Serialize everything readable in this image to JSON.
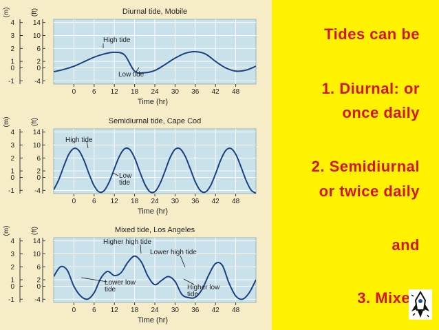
{
  "slide": {
    "lines": [
      "Tides can be",
      "1. Diurnal: or",
      "once daily",
      "2. Semidiurnal",
      "or twice daily",
      "and",
      "3. Mixed"
    ],
    "logo_icon": "rocket-logo-icon"
  },
  "colors": {
    "panel_bg": "#f6ecc8",
    "plot_bg": "#c9e1ea",
    "curve": "#1a3f80",
    "text_panel": "#fff200",
    "text": "#d4161b"
  },
  "chart_data": [
    {
      "type": "line",
      "title": "Diurnal tide, Mobile",
      "xlabel": "Time (hr)",
      "y_unit_left": "(m)",
      "y_unit_right": "(ft)",
      "x_ticks": [
        0,
        6,
        12,
        18,
        24,
        30,
        36,
        42,
        48
      ],
      "xlim": [
        -6,
        54
      ],
      "y_ticks_m": [
        4,
        3,
        2,
        1,
        0,
        -1
      ],
      "y_ticks_ft": [
        14,
        10,
        6,
        2,
        0,
        -4
      ],
      "ylim_ft": [
        -5,
        15
      ],
      "series": [
        {
          "x": [
            -6,
            -3,
            0,
            3,
            6,
            9,
            12,
            15,
            18,
            21,
            24,
            27,
            30,
            33,
            36,
            39,
            42,
            45,
            48,
            51,
            54
          ],
          "y": [
            -1.2,
            -0.5,
            0.5,
            1.9,
            3.3,
            4.3,
            4.8,
            4.0,
            -1.0,
            -1.5,
            -0.8,
            1.0,
            3.0,
            4.5,
            5.0,
            4.3,
            2.0,
            0,
            -1.0,
            -0.7,
            0.5
          ]
        }
      ],
      "annotations": [
        "High tide",
        "Low tide"
      ]
    },
    {
      "type": "line",
      "title": "Semidiurnal tide, Cape Cod",
      "xlabel": "Time (hr)",
      "y_unit_left": "(m)",
      "y_unit_right": "(ft)",
      "x_ticks": [
        0,
        6,
        12,
        18,
        24,
        30,
        36,
        42,
        48
      ],
      "xlim": [
        -6,
        54
      ],
      "y_ticks_m": [
        4,
        3,
        2,
        1,
        0,
        -1
      ],
      "y_ticks_ft": [
        14,
        10,
        6,
        2,
        0,
        -4
      ],
      "ylim_ft": [
        -5,
        15
      ],
      "series": [
        {
          "x": [
            -6.0,
            -4.5,
            -3.0,
            -1.5,
            0.0,
            1.5,
            3.0,
            4.5,
            6.0,
            7.5,
            9.0,
            10.5,
            12.0,
            13.5,
            15.0,
            16.5,
            18.0,
            19.5,
            21.0,
            22.5,
            24.0,
            25.5,
            27.0,
            28.5,
            30.0,
            31.5,
            33.0,
            34.5,
            36.0,
            37.5,
            39.0,
            40.5,
            42.0,
            43.5,
            45.0,
            46.5,
            48.0,
            49.5,
            51.0,
            52.5,
            54.0
          ],
          "y": [
            -3.84,
            -0.75,
            3.45,
            7.15,
            8.96,
            8.25,
            5.25,
            1.09,
            -2.59,
            -4.52,
            -4.05,
            -1.33,
            2.68,
            6.56,
            8.82,
            8.66,
            6.02,
            1.87,
            -2.03,
            -4.4,
            -4.4,
            -2.03,
            1.87,
            6.02,
            8.66,
            8.82,
            6.56,
            2.68,
            -1.33,
            -4.05,
            -4.52,
            -2.59,
            1.09,
            5.25,
            8.25,
            8.96,
            7.15,
            3.45,
            -0.75,
            -3.84,
            -4.92
          ]
        }
      ],
      "annotations": [
        "High tide",
        "Low tide"
      ]
    },
    {
      "type": "line",
      "title": "Mixed tide, Los Angeles",
      "xlabel": "Time (hr)",
      "y_unit_left": "(m)",
      "y_unit_right": "(ft)",
      "x_ticks": [
        0,
        6,
        12,
        18,
        24,
        30,
        36,
        42,
        48
      ],
      "xlim": [
        -6,
        54
      ],
      "y_ticks_m": [
        4,
        3,
        2,
        1,
        0,
        -1
      ],
      "y_ticks_ft": [
        14,
        10,
        6,
        2,
        0,
        -4
      ],
      "ylim_ft": [
        -5,
        15
      ],
      "series": [
        {
          "x": [
            -6,
            -4,
            -2,
            0,
            2,
            4,
            6,
            8,
            10,
            12,
            14,
            16,
            18,
            20,
            22,
            24,
            26,
            28,
            30,
            32,
            34,
            36,
            38,
            40,
            42,
            44,
            46,
            48,
            50,
            52,
            54
          ],
          "y": [
            3.0,
            6.0,
            5.0,
            0.0,
            -3.0,
            -4.0,
            -2.0,
            2.5,
            4.6,
            3.3,
            4.2,
            7.4,
            9.3,
            7.5,
            3.0,
            0.5,
            1.8,
            3.0,
            1.5,
            -2.5,
            -3.5,
            -3.4,
            -1.0,
            3.5,
            7.0,
            6.5,
            1.0,
            -3.0,
            -4.0,
            -2.0,
            2.0
          ]
        }
      ],
      "annotations": [
        "Higher high tide",
        "Lower high tide",
        "Lower low tide",
        "Higher low tide"
      ]
    }
  ]
}
